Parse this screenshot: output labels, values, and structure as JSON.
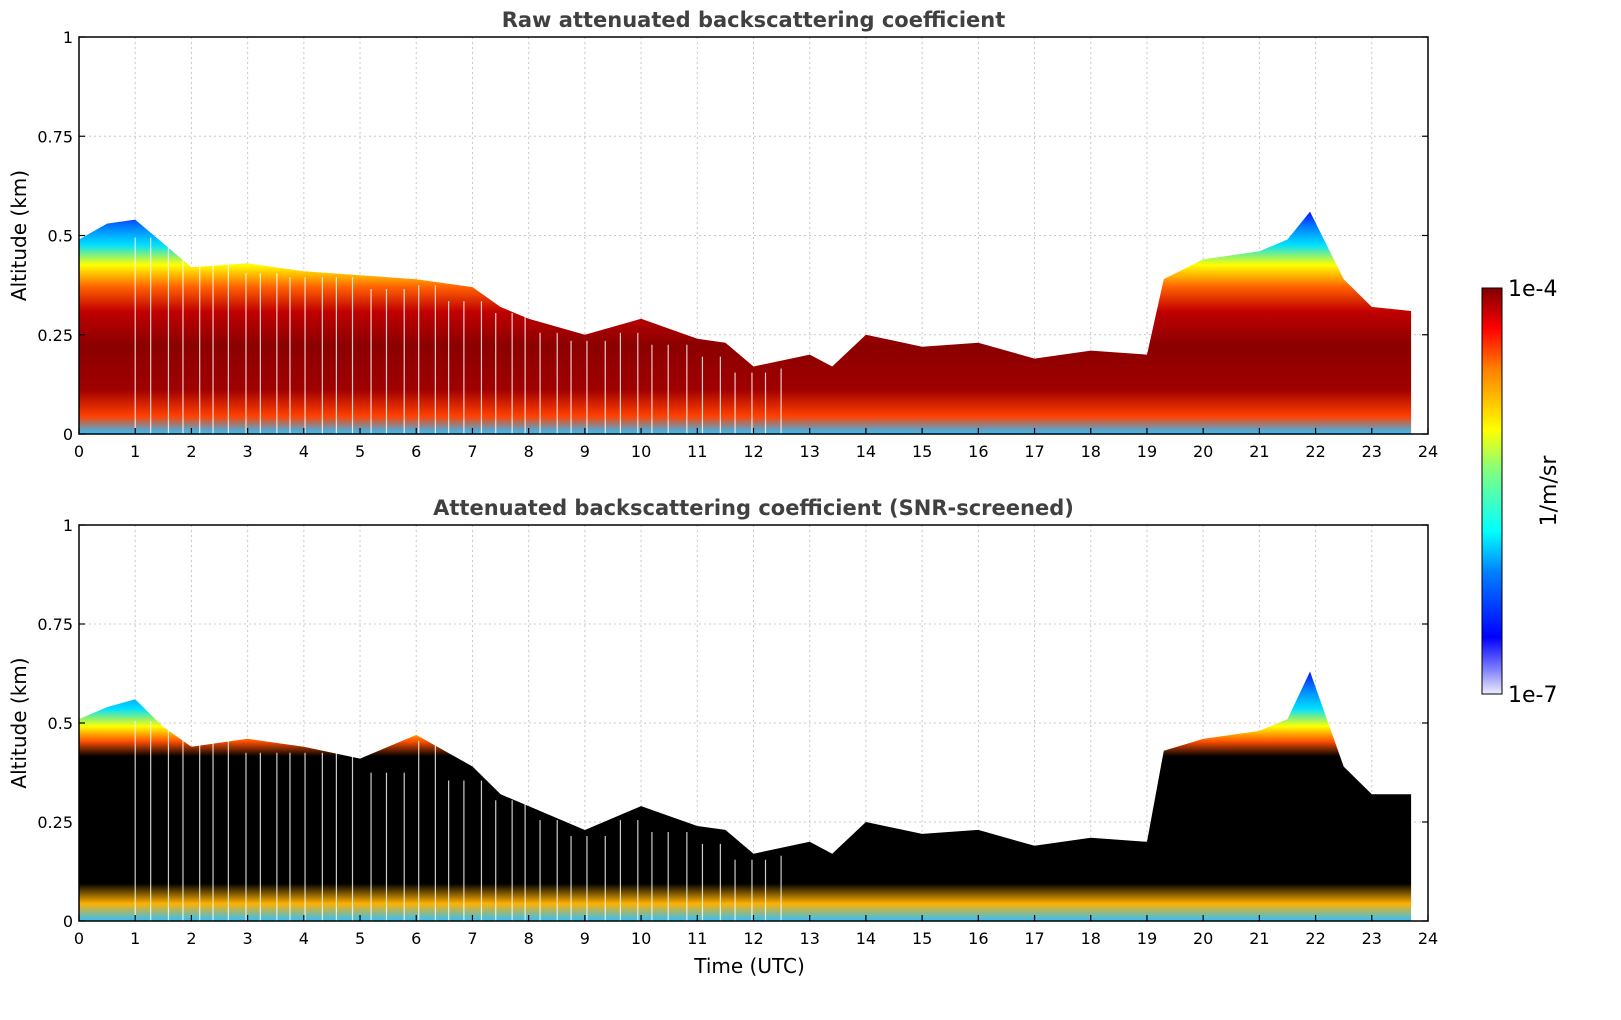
{
  "chart_data": [
    {
      "type": "heatmap",
      "title": "Raw attenuated backscattering coefficient",
      "xlabel": "",
      "ylabel": "Altitude (km)",
      "xlim": [
        0,
        24
      ],
      "ylim": [
        0,
        1
      ],
      "xticks": [
        "0",
        "1",
        "2",
        "3",
        "4",
        "5",
        "6",
        "7",
        "8",
        "9",
        "10",
        "11",
        "12",
        "13",
        "14",
        "15",
        "16",
        "17",
        "18",
        "19",
        "20",
        "21",
        "22",
        "23",
        "24"
      ],
      "yticks": [
        "0",
        "0.25",
        "0.5",
        "0.75",
        "1"
      ],
      "grid": true,
      "screened": false,
      "boundary_layer_top_km": {
        "x": [
          0,
          0.5,
          1,
          1.5,
          2,
          3,
          4,
          5,
          6,
          7,
          7.5,
          8,
          9,
          10,
          11,
          11.5,
          12,
          13,
          13.4,
          14,
          15,
          16,
          17,
          18,
          19,
          19.3,
          20,
          21,
          21.5,
          21.9,
          22.5,
          23,
          23.7
        ],
        "y": [
          0.5,
          0.52,
          0.55,
          0.47,
          0.43,
          0.42,
          0.42,
          0.39,
          0.4,
          0.36,
          0.33,
          0.28,
          0.26,
          0.28,
          0.25,
          0.22,
          0.18,
          0.19,
          0.18,
          0.24,
          0.23,
          0.22,
          0.2,
          0.2,
          0.21,
          0.38,
          0.45,
          0.45,
          0.5,
          0.55,
          0.4,
          0.31,
          0.32
        ]
      }
    },
    {
      "type": "heatmap",
      "title": "Attenuated backscattering coefficient (SNR-screened)",
      "xlabel": "Time (UTC)",
      "ylabel": "Altitude (km)",
      "xlim": [
        0,
        24
      ],
      "ylim": [
        0,
        1
      ],
      "xticks": [
        "0",
        "1",
        "2",
        "3",
        "4",
        "5",
        "6",
        "7",
        "8",
        "9",
        "10",
        "11",
        "12",
        "13",
        "14",
        "15",
        "16",
        "17",
        "18",
        "19",
        "20",
        "21",
        "22",
        "23",
        "24"
      ],
      "yticks": [
        "0",
        "0.25",
        "0.5",
        "0.75",
        "1"
      ],
      "grid": true,
      "screened": true,
      "boundary_layer_top_km": {
        "x": [
          0,
          0.5,
          1,
          1.5,
          2,
          3,
          4,
          5,
          6,
          7,
          7.5,
          8,
          9,
          10,
          11,
          11.5,
          12,
          13,
          13.4,
          14,
          15,
          16,
          17,
          18,
          19,
          19.3,
          20,
          21,
          21.5,
          21.9,
          22.5,
          23,
          23.7
        ],
        "y": [
          0.52,
          0.53,
          0.57,
          0.48,
          0.45,
          0.45,
          0.45,
          0.4,
          0.48,
          0.38,
          0.33,
          0.28,
          0.24,
          0.28,
          0.25,
          0.22,
          0.18,
          0.19,
          0.18,
          0.24,
          0.23,
          0.22,
          0.2,
          0.2,
          0.21,
          0.42,
          0.47,
          0.47,
          0.52,
          0.62,
          0.4,
          0.31,
          0.33
        ]
      }
    }
  ],
  "colorbar": {
    "label": "1/m/sr",
    "max_label": "1e-4",
    "min_label": "1e-7",
    "colormap": "jet",
    "scale": "log",
    "colors": [
      "#e8e8f8",
      "#0000ff",
      "#00ffff",
      "#ffff00",
      "#ff0000",
      "#800000"
    ]
  }
}
